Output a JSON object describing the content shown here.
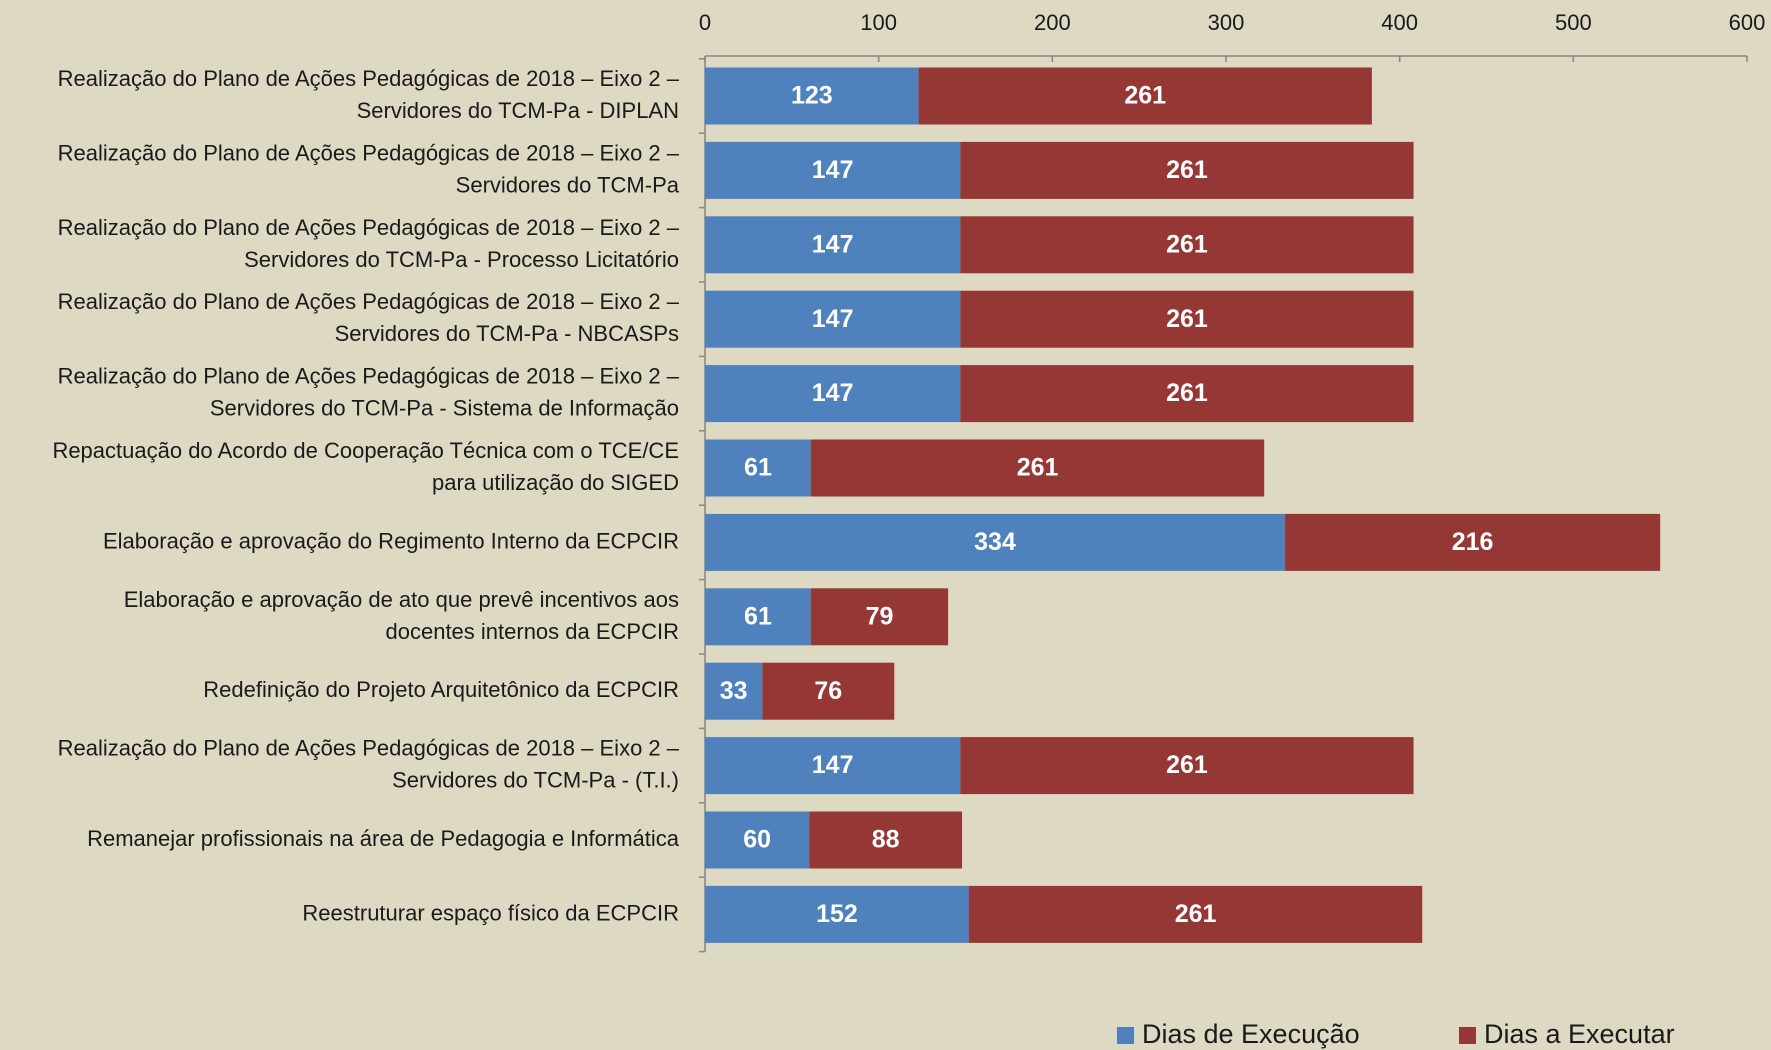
{
  "chart_data": {
    "type": "stacked_bar_horizontal",
    "categories": [
      "Realização do Plano de Ações Pedagógicas de 2018 – Eixo 2 –\nServidores do TCM-Pa - DIPLAN",
      "Realização do Plano de Ações Pedagógicas de 2018 – Eixo 2 –\nServidores do TCM-Pa",
      "Realização do Plano de Ações Pedagógicas de 2018 – Eixo 2 –\nServidores do TCM-Pa - Processo Licitatório",
      "Realização do Plano de Ações Pedagógicas de 2018 – Eixo 2 –\nServidores do TCM-Pa - NBCASPs",
      "Realização do Plano de Ações Pedagógicas de 2018 – Eixo 2 –\nServidores do TCM-Pa - Sistema de Informação",
      "Repactuação do Acordo de Cooperação Técnica com o TCE/CE\npara utilização do SIGED",
      "Elaboração e aprovação do Regimento Interno da ECPCIR",
      "Elaboração e aprovação de ato que prevê incentivos aos\ndocentes internos da ECPCIR",
      "Redefinição do Projeto Arquitetônico da ECPCIR",
      "Realização do Plano de Ações Pedagógicas de 2018 – Eixo 2 –\nServidores do TCM-Pa - (T.I.)",
      "Remanejar profissionais na área de Pedagogia e Informática",
      "Reestruturar espaço físico da ECPCIR"
    ],
    "series": [
      {
        "name": "Dias de Execução",
        "color": "#4f81bd",
        "values": [
          123,
          147,
          147,
          147,
          147,
          61,
          334,
          61,
          33,
          147,
          60,
          152
        ]
      },
      {
        "name": "Dias a Executar",
        "color": "#953735",
        "values": [
          261,
          261,
          261,
          261,
          261,
          261,
          216,
          79,
          76,
          261,
          88,
          261
        ]
      }
    ],
    "xlim": [
      0,
      600
    ],
    "xticks": [
      0,
      100,
      200,
      300,
      400,
      500,
      600
    ]
  }
}
